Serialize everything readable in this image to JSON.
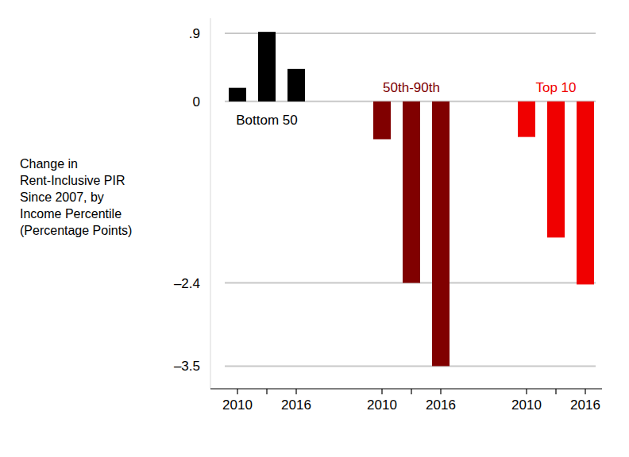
{
  "chart_data": {
    "type": "bar",
    "ylabel": "Change in\nRent-Inclusive PIR\nSince 2007, by\nIncome Percentile\n(Percentage Points)",
    "categories": [
      "2010",
      null,
      "2016"
    ],
    "series": [
      {
        "name": "Bottom 50",
        "color": "#000000",
        "values": [
          0.18,
          0.92,
          0.43
        ]
      },
      {
        "name": "50th-90th",
        "color": "#800000",
        "values": [
          -0.5,
          -2.4,
          -3.5
        ]
      },
      {
        "name": "Top 10",
        "color": "#f00000",
        "values": [
          -0.47,
          -1.8,
          -2.42
        ]
      }
    ],
    "ylim": [
      -3.8,
      1.1
    ],
    "yticks": [
      {
        "value": 0.9,
        "label": ".9"
      },
      0,
      {
        "value": -2.4,
        "label": "–2.4"
      },
      {
        "value": -3.5,
        "label": "–3.5"
      }
    ],
    "grid": true
  }
}
